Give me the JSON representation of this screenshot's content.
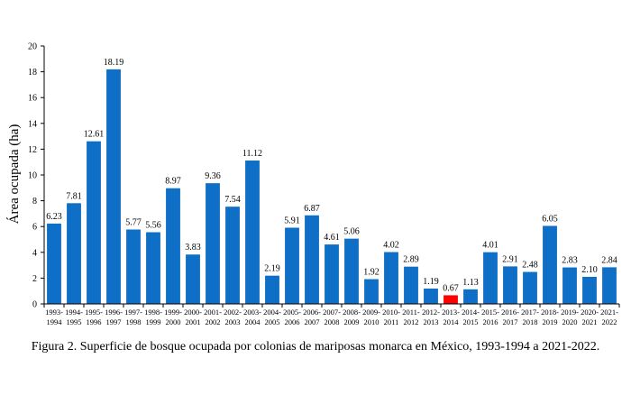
{
  "caption": "Figura 2. Superficie de bosque ocupada por colonias de mariposas monarca en México, 1993-1994 a 2021-2022.",
  "chart_data": {
    "type": "bar",
    "title": "",
    "xlabel": "",
    "ylabel": "Área ocupada  (ha)",
    "ylim": [
      0,
      20
    ],
    "yticks": [
      0,
      2,
      4,
      6,
      8,
      10,
      12,
      14,
      16,
      18,
      20
    ],
    "grid": false,
    "legend": "none",
    "colors": {
      "default": "#0f6fc6",
      "highlight": "#ff0000"
    },
    "categories": [
      [
        "1993-",
        "1994"
      ],
      [
        "1994-",
        "1995"
      ],
      [
        "1995-",
        "1996"
      ],
      [
        "1996-",
        "1997"
      ],
      [
        "1997-",
        "1998"
      ],
      [
        "1998-",
        "1999"
      ],
      [
        "1999-",
        "2000"
      ],
      [
        "2000-",
        "2001"
      ],
      [
        "2001-",
        "2002"
      ],
      [
        "2002-",
        "2003"
      ],
      [
        "2003-",
        "2004"
      ],
      [
        "2004-",
        "2005"
      ],
      [
        "2005-",
        "2006"
      ],
      [
        "2006-",
        "2007"
      ],
      [
        "2007-",
        "2008"
      ],
      [
        "2008-",
        "2009"
      ],
      [
        "2009-",
        "2010"
      ],
      [
        "2010-",
        "2011"
      ],
      [
        "2011-",
        "2012"
      ],
      [
        "2012-",
        "2013"
      ],
      [
        "2013-",
        "2014"
      ],
      [
        "2014-",
        "2015"
      ],
      [
        "2015-",
        "2016"
      ],
      [
        "2016-",
        "2017"
      ],
      [
        "2017-",
        "2018"
      ],
      [
        "2018-",
        "2019"
      ],
      [
        "2019-",
        "2020"
      ],
      [
        "2020-",
        "2021"
      ],
      [
        "2021-",
        "2022"
      ]
    ],
    "values": [
      6.23,
      7.81,
      12.61,
      18.19,
      5.77,
      5.56,
      8.97,
      3.83,
      9.36,
      7.54,
      11.12,
      2.19,
      5.91,
      6.87,
      4.61,
      5.06,
      1.92,
      4.02,
      2.89,
      1.19,
      0.67,
      1.13,
      4.01,
      2.91,
      2.48,
      6.05,
      2.83,
      2.1,
      2.84
    ],
    "data_labels": [
      "6.23",
      "7.81",
      "12.61",
      "18.19",
      "5.77",
      "5.56",
      "8.97",
      "3.83",
      "9.36",
      "7.54",
      "11.12",
      "2.19",
      "5.91",
      "6.87",
      "4.61",
      "5.06",
      "1.92",
      "4.02",
      "2.89",
      "1.19",
      "0.67",
      "1.13",
      "4.01",
      "2.91",
      "2.48",
      "6.05",
      "2.83",
      "2.10",
      "2.84"
    ],
    "highlight_index": 20
  }
}
